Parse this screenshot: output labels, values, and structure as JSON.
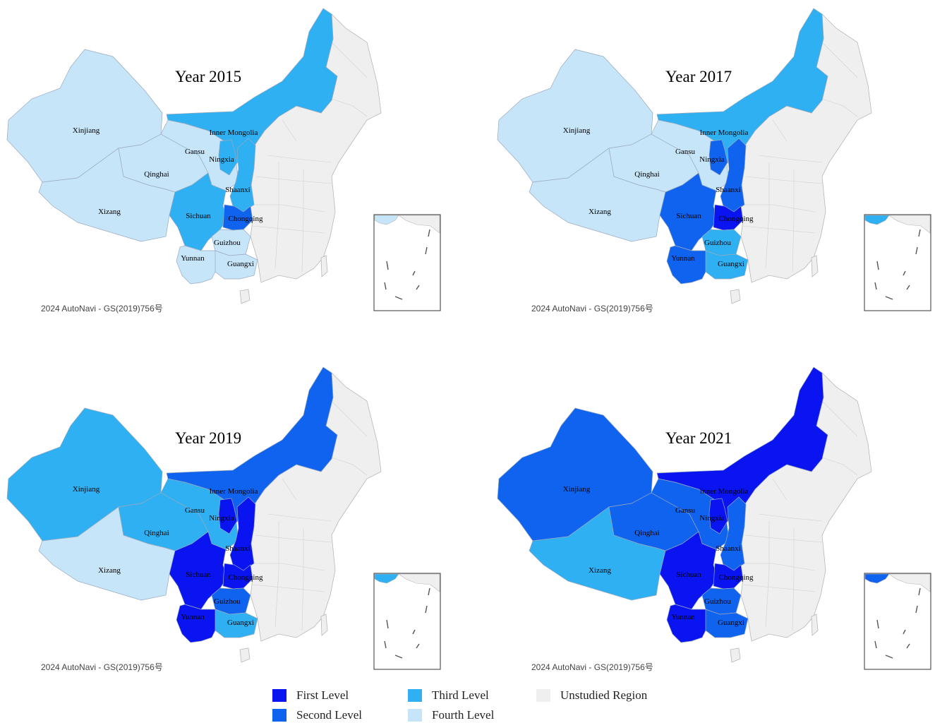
{
  "colors": {
    "first": "#0a14f0",
    "second": "#0f63ef",
    "third": "#2eb0f2",
    "fourth": "#c6e5f9",
    "unstudied": "#efefef",
    "border": "#b7b7b7"
  },
  "credit": "2024 AutoNavi - GS(2019)756号",
  "province_names": {
    "xinjiang": "Xinjiang",
    "xizang": "Xizang",
    "qinghai": "Qinghai",
    "gansu": "Gansu",
    "ningxia": "Ningxia",
    "inner_mongolia": "Inner Mongolia",
    "shaanxi": "Shaanxi",
    "sichuan": "Sichuan",
    "chongqing": "Chongqing",
    "guizhou": "Guizhou",
    "yunnan": "Yunnan",
    "guangxi": "Guangxi"
  },
  "panels": [
    {
      "title": "Year 2015",
      "levels": {
        "xinjiang": "fourth",
        "xizang": "fourth",
        "qinghai": "fourth",
        "gansu": "fourth",
        "ningxia": "third",
        "inner_mongolia": "third",
        "shaanxi": "third",
        "sichuan": "third",
        "chongqing": "second",
        "guizhou": "fourth",
        "yunnan": "fourth",
        "guangxi": "fourth"
      }
    },
    {
      "title": "Year 2017",
      "levels": {
        "xinjiang": "fourth",
        "xizang": "fourth",
        "qinghai": "fourth",
        "gansu": "fourth",
        "ningxia": "second",
        "inner_mongolia": "third",
        "shaanxi": "second",
        "sichuan": "second",
        "chongqing": "first",
        "guizhou": "third",
        "yunnan": "second",
        "guangxi": "third"
      }
    },
    {
      "title": "Year 2019",
      "levels": {
        "xinjiang": "third",
        "xizang": "fourth",
        "qinghai": "third",
        "gansu": "third",
        "ningxia": "first",
        "inner_mongolia": "second",
        "shaanxi": "first",
        "sichuan": "first",
        "chongqing": "first",
        "guizhou": "second",
        "yunnan": "first",
        "guangxi": "third"
      }
    },
    {
      "title": "Year 2021",
      "levels": {
        "xinjiang": "second",
        "xizang": "third",
        "qinghai": "second",
        "gansu": "second",
        "ningxia": "first",
        "inner_mongolia": "first",
        "shaanxi": "second",
        "sichuan": "first",
        "chongqing": "first",
        "guizhou": "second",
        "yunnan": "first",
        "guangxi": "second"
      }
    }
  ],
  "legend": [
    {
      "label": "First Level",
      "level": "first"
    },
    {
      "label": "Second Level",
      "level": "second"
    },
    {
      "label": "Third Level",
      "level": "third"
    },
    {
      "label": "Fourth Level",
      "level": "fourth"
    },
    {
      "label": "Unstudied Region",
      "level": "unstudied"
    }
  ]
}
